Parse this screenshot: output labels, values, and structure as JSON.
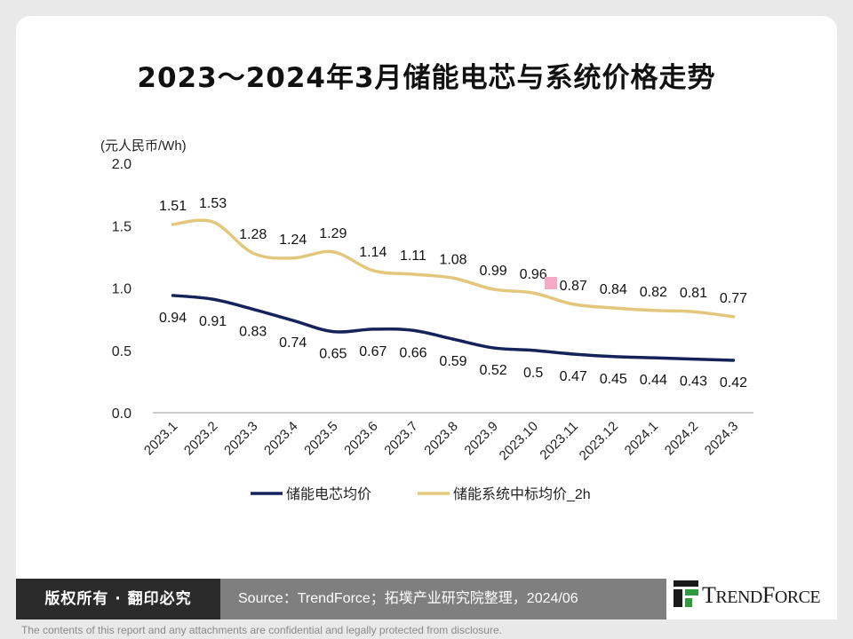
{
  "chart_data": {
    "type": "line",
    "title": "2023～2024年3月储能电芯与系统价格走势",
    "ylabel": "(元人民币/Wh)",
    "xlabel": "",
    "ylim": [
      0,
      2
    ],
    "y_ticks": [
      "0.0",
      "0.5",
      "1.0",
      "1.5",
      "2.0"
    ],
    "categories": [
      "2023.1",
      "2023.2",
      "2023.3",
      "2023.4",
      "2023.5",
      "2023.6",
      "2023.7",
      "2023.8",
      "2023.9",
      "2023.10",
      "2023.11",
      "2023.12",
      "2024.1",
      "2024.2",
      "2024.3"
    ],
    "series": [
      {
        "name": "储能电芯均价",
        "color": "#14235a",
        "values": [
          0.94,
          0.91,
          0.83,
          0.74,
          0.65,
          0.67,
          0.66,
          0.59,
          0.52,
          0.5,
          0.47,
          0.45,
          0.44,
          0.43,
          0.42
        ],
        "labels": [
          "0.94",
          "0.91",
          "0.83",
          "0.74",
          "0.65",
          "0.67",
          "0.66",
          "0.59",
          "0.52",
          "0.5",
          "0.47",
          "0.45",
          "0.44",
          "0.43",
          "0.42"
        ]
      },
      {
        "name": "储能系统中标均价_2h",
        "color": "#e3c77c",
        "values": [
          1.51,
          1.53,
          1.28,
          1.24,
          1.29,
          1.14,
          1.11,
          1.08,
          0.99,
          0.96,
          0.87,
          0.84,
          0.82,
          0.81,
          0.77
        ],
        "labels": [
          "1.51",
          "1.53",
          "1.28",
          "1.24",
          "1.29",
          "1.14",
          "1.11",
          "1.08",
          "0.99",
          "0.96",
          "0.87",
          "0.84",
          "0.82",
          "0.81",
          "0.77"
        ]
      }
    ],
    "legend_position": "bottom",
    "grid": false
  },
  "footer": {
    "copyright": "版权所有 · 翻印必究",
    "source": "Source：TrendForce；拓墣产业研究院整理，2024/06",
    "logo_text": "TrendForce",
    "disclaimer": "The contents of this report and any attachments are confidential and legally protected from disclosure."
  }
}
